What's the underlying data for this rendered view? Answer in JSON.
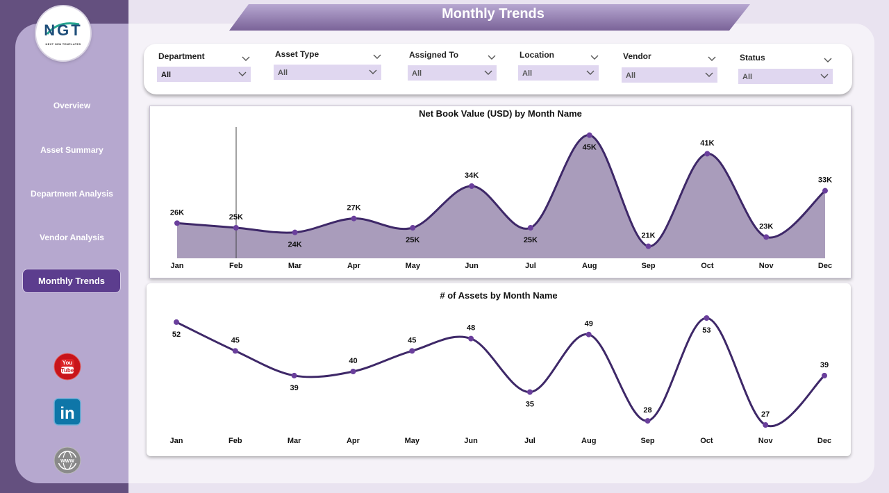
{
  "app": {
    "logo_text": "NGT",
    "logo_subtitle": "NEXT GEN TEMPLATES",
    "page_title": "Monthly Trends"
  },
  "sidebar": {
    "items": [
      {
        "label": "Overview",
        "active": false
      },
      {
        "label": "Asset Summary",
        "active": false
      },
      {
        "label": "Department Analysis",
        "active": false
      },
      {
        "label": "Vendor Analysis",
        "active": false
      },
      {
        "label": "Monthly Trends",
        "active": true
      }
    ],
    "social": [
      {
        "name": "youtube-icon",
        "text": "You Tube"
      },
      {
        "name": "linkedin-icon",
        "text": "in"
      },
      {
        "name": "web-icon",
        "text": "WWW"
      }
    ]
  },
  "filters": [
    {
      "label": "Department",
      "value": "All"
    },
    {
      "label": "Asset Type",
      "value": "All"
    },
    {
      "label": "Assigned To",
      "value": "All"
    },
    {
      "label": "Location",
      "value": "All"
    },
    {
      "label": "Vendor",
      "value": "All"
    },
    {
      "label": "Status",
      "value": "All"
    }
  ],
  "colors": {
    "accent": "#5c3d8e",
    "line": "#3e2868",
    "area_fill": "#a99cbb",
    "marker": "#6a3f9c"
  },
  "chart_data": [
    {
      "type": "area",
      "title": "Net Book Value (USD) by Month Name",
      "categories": [
        "Jan",
        "Feb",
        "Mar",
        "Apr",
        "May",
        "Jun",
        "Jul",
        "Aug",
        "Sep",
        "Oct",
        "Nov",
        "Dec"
      ],
      "values": [
        26000,
        25000,
        24000,
        27000,
        25000,
        34000,
        25000,
        45000,
        21000,
        41000,
        23000,
        33000
      ],
      "labels": [
        "26K",
        "25K",
        "24K",
        "27K",
        "25K",
        "34K",
        "25K",
        "45K",
        "21K",
        "41K",
        "23K",
        "33K"
      ],
      "ylim": [
        19000,
        46000
      ]
    },
    {
      "type": "line",
      "title": "# of Assets by Month Name",
      "categories": [
        "Jan",
        "Feb",
        "Mar",
        "Apr",
        "May",
        "Jun",
        "Jul",
        "Aug",
        "Sep",
        "Oct",
        "Nov",
        "Dec"
      ],
      "values": [
        52,
        45,
        39,
        40,
        45,
        48,
        35,
        49,
        28,
        53,
        27,
        39
      ],
      "labels": [
        "52",
        "45",
        "39",
        "40",
        "45",
        "48",
        "35",
        "49",
        "28",
        "53",
        "27",
        "39"
      ],
      "ylim": [
        27,
        53
      ]
    }
  ]
}
